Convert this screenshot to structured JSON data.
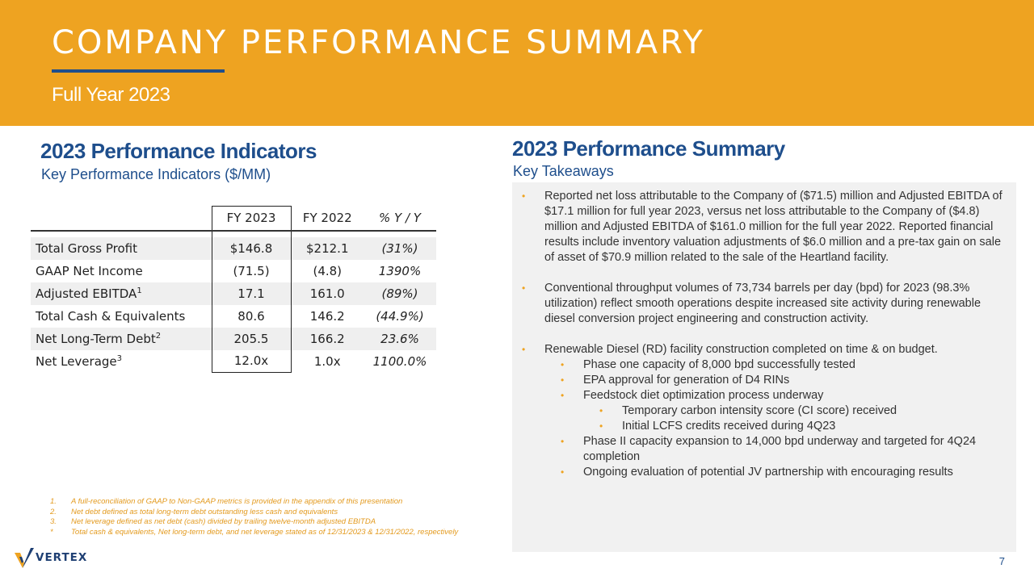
{
  "header": {
    "title": "COMPANY PERFORMANCE SUMMARY",
    "subtitle": "Full Year 2023"
  },
  "indicators": {
    "title": "2023 Performance Indicators",
    "subtitle": "Key Performance Indicators ($/MM)",
    "columns": [
      "FY 2023",
      "FY 2022",
      "% Y / Y"
    ],
    "rows": [
      {
        "label": "Total Gross Profit",
        "sup": "",
        "fy2023": "$146.8",
        "fy2022": "$212.1",
        "yoy": "(31%)"
      },
      {
        "label": "GAAP Net Income",
        "sup": "",
        "fy2023": "(71.5)",
        "fy2022": "(4.8)",
        "yoy": "1390%"
      },
      {
        "label": "Adjusted EBITDA",
        "sup": "1",
        "fy2023": "17.1",
        "fy2022": "161.0",
        "yoy": "(89%)"
      },
      {
        "label": "Total Cash & Equivalents",
        "sup": "",
        "fy2023": "80.6",
        "fy2022": "146.2",
        "yoy": "(44.9%)"
      },
      {
        "label": "Net Long-Term Debt",
        "sup": "2",
        "fy2023": "205.5",
        "fy2022": "166.2",
        "yoy": "23.6%"
      },
      {
        "label": "Net Leverage",
        "sup": "3",
        "fy2023": "12.0x",
        "fy2022": "1.0x",
        "yoy": "1100.0%"
      }
    ]
  },
  "footnotes": [
    {
      "num": "1.",
      "text": "A full-reconciliation of GAAP to Non-GAAP metrics is provided in the appendix of this presentation"
    },
    {
      "num": "2.",
      "text": "Net debt defined as total long-term debt outstanding less cash and equivalents"
    },
    {
      "num": "3.",
      "text": "Net leverage defined as net debt (cash) divided by trailing twelve-month adjusted EBITDA"
    },
    {
      "num": "*",
      "text": "Total cash & equivalents, Net long-term debt, and net leverage stated as of 12/31/2023 & 12/31/2022, respectively"
    }
  ],
  "summary": {
    "title": "2023 Performance Summary",
    "subtitle": "Key Takeaways",
    "bullets": [
      {
        "level": 0,
        "text": "Reported net loss attributable to the Company of ($71.5) million and Adjusted EBITDA of $17.1 million for full year 2023, versus net loss attributable to the Company of ($4.8) million and Adjusted EBITDA of $161.0 million for the full year 2022. Reported financial results include inventory valuation adjustments of $6.0 million and a pre-tax gain on sale of asset of $70.9 million related to the sale of the Heartland facility."
      },
      {
        "level": 0,
        "text": "Conventional throughput volumes of 73,734 barrels per day (bpd) for 2023 (98.3% utilization) reflect smooth operations despite increased site activity during renewable diesel conversion project engineering and construction activity."
      },
      {
        "level": 0,
        "text": "Renewable Diesel (RD) facility construction completed on time & on budget."
      },
      {
        "level": 1,
        "text": "Phase one capacity of 8,000 bpd successfully tested"
      },
      {
        "level": 1,
        "text": "EPA approval for generation of D4 RINs"
      },
      {
        "level": 1,
        "text": "Feedstock diet optimization process underway"
      },
      {
        "level": 2,
        "text": "Temporary carbon intensity score (CI score) received"
      },
      {
        "level": 2,
        "text": "Initial LCFS credits received during 4Q23"
      },
      {
        "level": 1,
        "text": "Phase II capacity expansion to 14,000 bpd underway and targeted for 4Q24 completion"
      },
      {
        "level": 1,
        "text": "Ongoing evaluation of potential JV partnership with encouraging results"
      }
    ]
  },
  "logo": {
    "text": "VERTEX",
    "mark_color": "#EEA321"
  },
  "page_number": "7",
  "colors": {
    "accent": "#EEA321",
    "brand_blue": "#1E4E8C"
  }
}
